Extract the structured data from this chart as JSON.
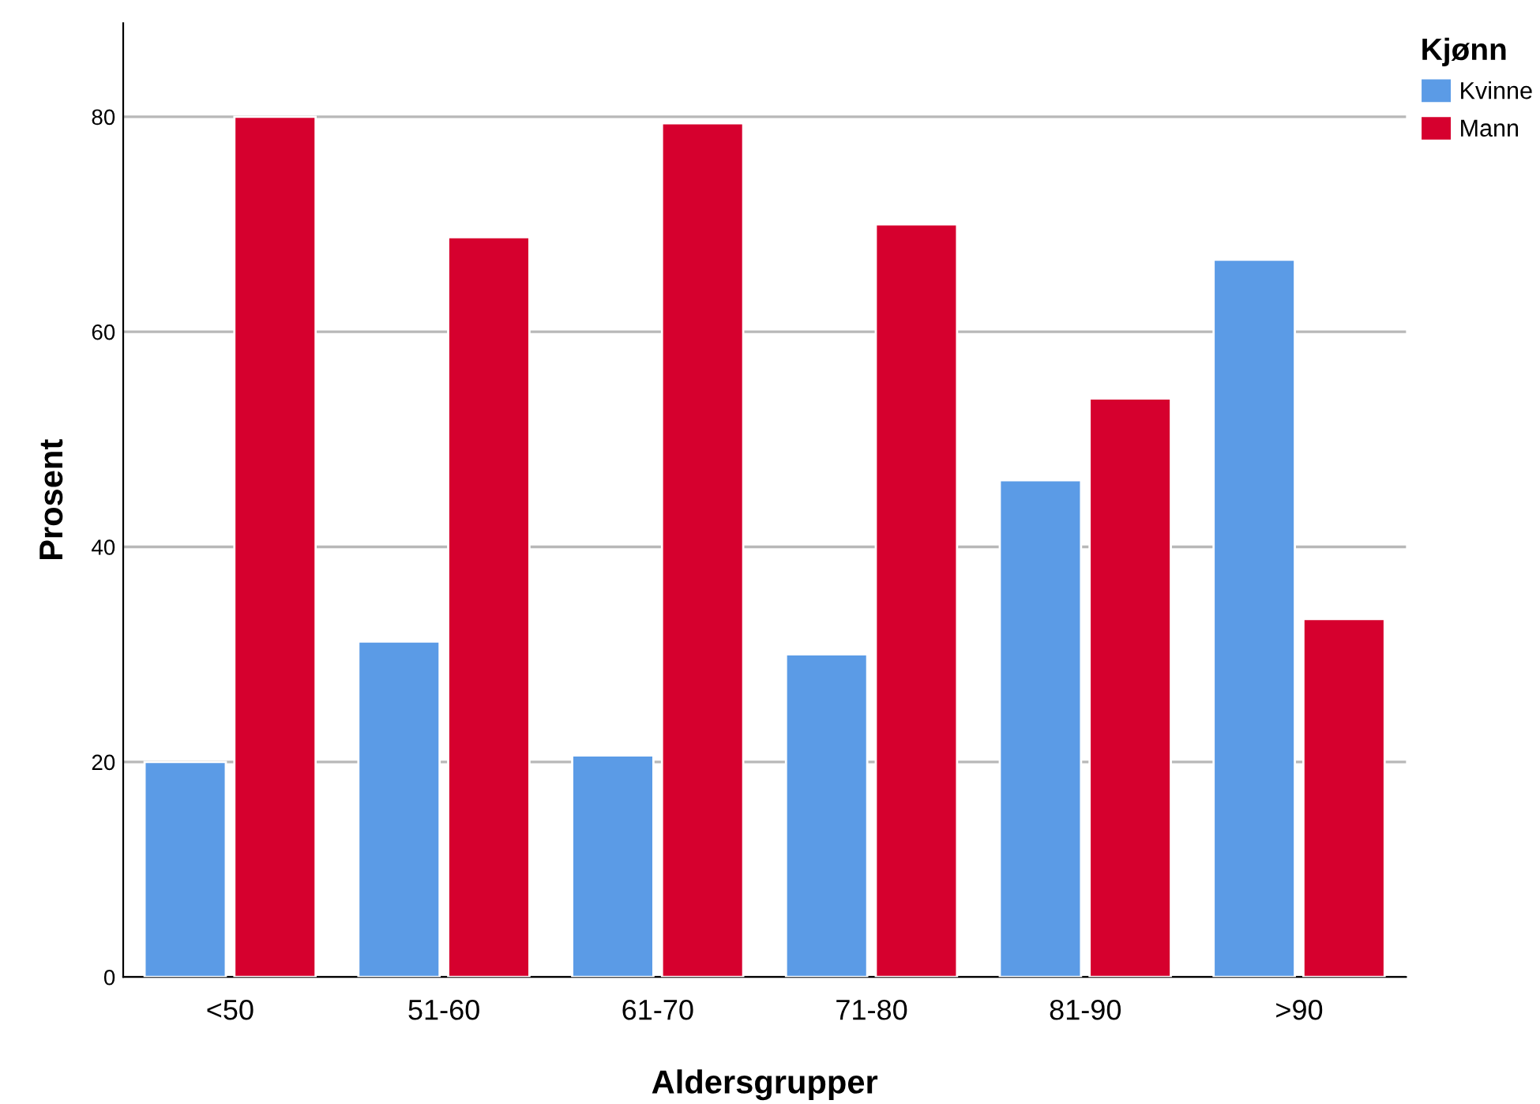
{
  "chart_data": {
    "type": "bar",
    "xlabel": "Aldersgrupper",
    "ylabel": "Prosent",
    "legend_title": "Kjønn",
    "categories": [
      "<50",
      "51-60",
      "61-70",
      "71-80",
      "81-90",
      ">90"
    ],
    "series": [
      {
        "name": "Kvinne",
        "color": "#5b9be6",
        "values": [
          20.0,
          31.2,
          20.6,
          30.0,
          46.2,
          66.7
        ]
      },
      {
        "name": "Mann",
        "color": "#d6002e",
        "values": [
          80.0,
          68.8,
          79.4,
          70.0,
          53.8,
          33.3
        ]
      }
    ],
    "ylim": [
      0,
      88.7
    ],
    "yticks": [
      0,
      20,
      40,
      60,
      80
    ],
    "grid": "y",
    "legend": "top right"
  }
}
